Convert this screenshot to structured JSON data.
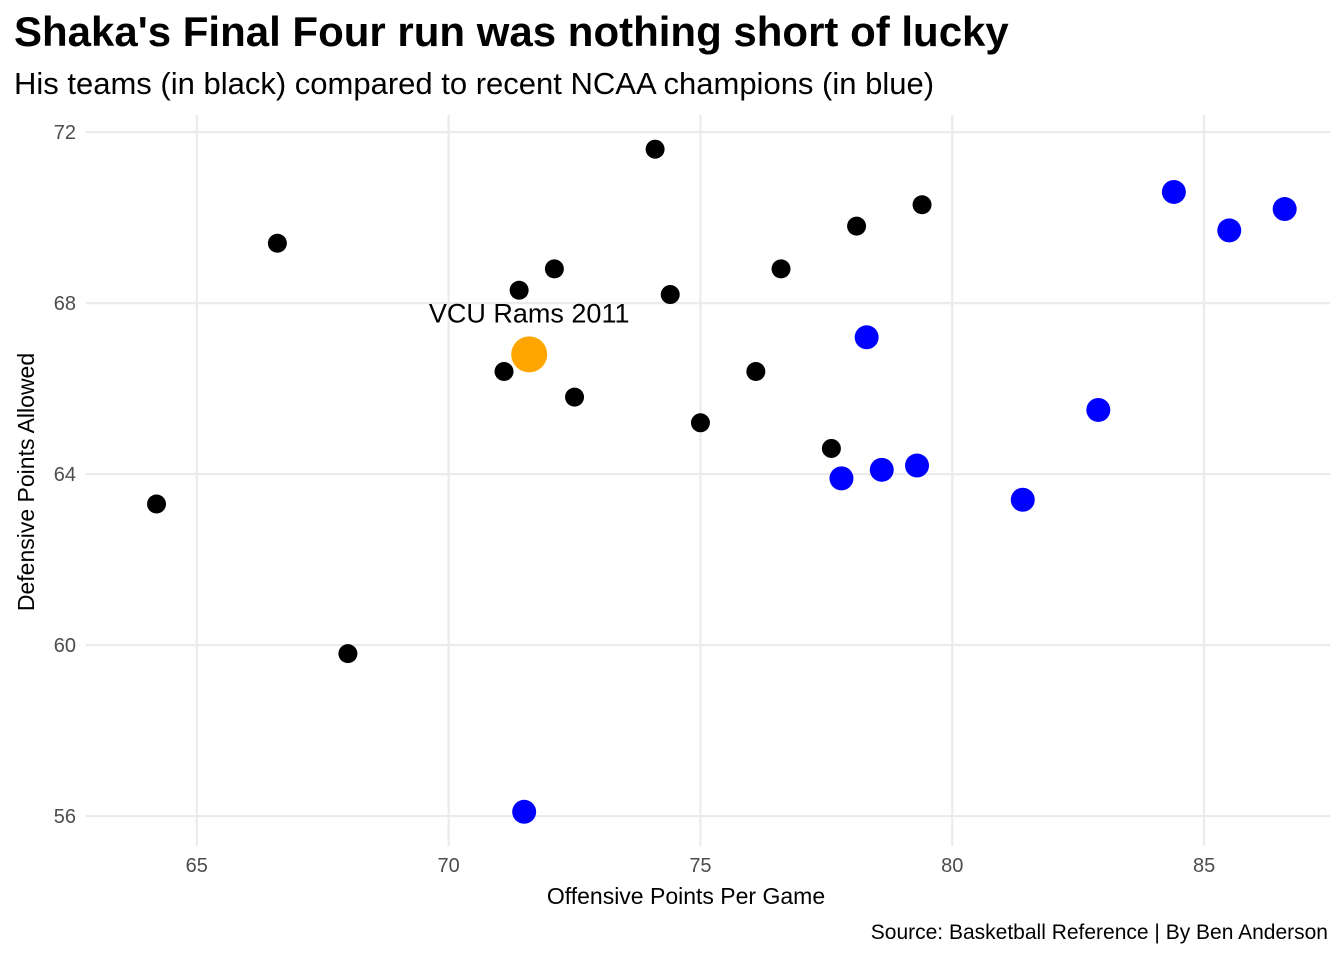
{
  "chart_data": {
    "type": "scatter",
    "title": "Shaka's Final Four run was nothing short of lucky",
    "subtitle": "His teams (in black) compared to recent NCAA champions (in blue)",
    "caption": "Source: Basketball Reference | By Ben Anderson",
    "xlabel": "Offensive Points Per Game",
    "ylabel": "Defensive Points Allowed",
    "xlim": [
      62.8,
      87.5
    ],
    "ylim": [
      55.3,
      72.4
    ],
    "x_ticks": [
      65,
      70,
      75,
      80,
      85
    ],
    "y_ticks": [
      56,
      60,
      64,
      68,
      72
    ],
    "grid": true,
    "colors": {
      "shaka_teams": "#000000",
      "champions": "#0000ff",
      "highlight": "#ffa500",
      "grid": "#ebebeb"
    },
    "series": [
      {
        "color": "#000000",
        "points": [
          {
            "x": 64.2,
            "y": 63.3
          },
          {
            "x": 66.6,
            "y": 69.4
          },
          {
            "x": 68.0,
            "y": 59.8
          },
          {
            "x": 71.1,
            "y": 66.4
          },
          {
            "x": 71.4,
            "y": 68.3
          },
          {
            "x": 72.1,
            "y": 68.8
          },
          {
            "x": 72.5,
            "y": 65.8
          },
          {
            "x": 74.1,
            "y": 71.6
          },
          {
            "x": 74.4,
            "y": 68.2
          },
          {
            "x": 75.0,
            "y": 65.2
          },
          {
            "x": 76.1,
            "y": 66.4
          },
          {
            "x": 76.6,
            "y": 68.8
          },
          {
            "x": 77.6,
            "y": 64.6
          },
          {
            "x": 78.1,
            "y": 69.8
          },
          {
            "x": 79.4,
            "y": 70.3
          }
        ]
      },
      {
        "color": "#0000ff",
        "points": [
          {
            "x": 71.5,
            "y": 56.1
          },
          {
            "x": 77.8,
            "y": 63.9
          },
          {
            "x": 78.3,
            "y": 67.2
          },
          {
            "x": 78.6,
            "y": 64.1
          },
          {
            "x": 79.3,
            "y": 64.2
          },
          {
            "x": 81.4,
            "y": 63.4
          },
          {
            "x": 82.9,
            "y": 65.5
          },
          {
            "x": 84.4,
            "y": 70.6
          },
          {
            "x": 85.5,
            "y": 69.7
          },
          {
            "x": 86.6,
            "y": 70.2
          }
        ]
      }
    ],
    "highlight": {
      "label": "VCU Rams 2011",
      "x": 71.6,
      "y": 66.8,
      "color": "#ffa500"
    }
  }
}
